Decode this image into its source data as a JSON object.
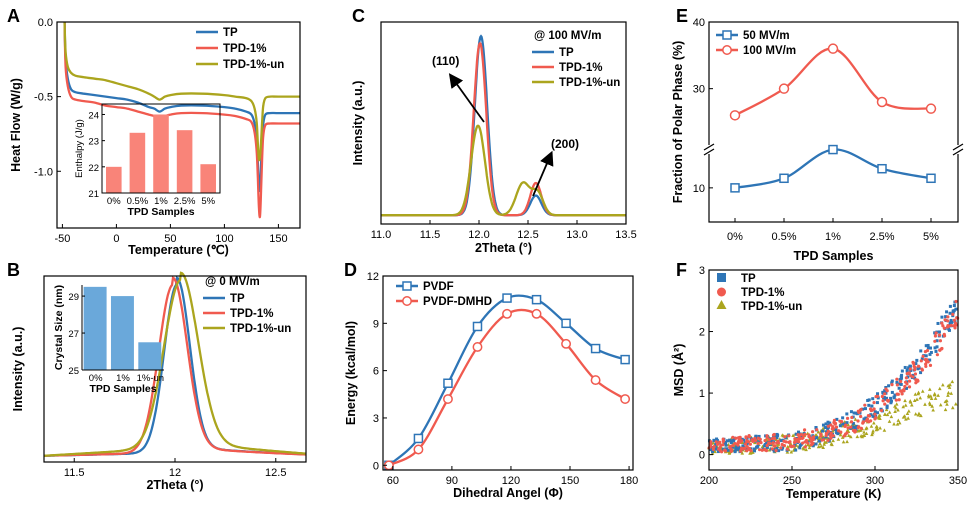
{
  "colors": {
    "TP": "#2E75B6",
    "TPD-1%": "#F05A4F",
    "TPD-1%-un": "#ABA51E",
    "bar_A": "#F98479",
    "bar_B": "#6AA8DA"
  },
  "chart_data": [
    {
      "id": "A",
      "type": "line",
      "panel_label": "A",
      "xlabel": "Temperature (℃)",
      "ylabel": "Heat Flow (W/g)",
      "xlim": [
        -55,
        170
      ],
      "ylim": [
        -1.38,
        0.0
      ],
      "xticks": [
        -50,
        0,
        50,
        100,
        150
      ],
      "yticks": [
        0.0,
        -0.5,
        -1.0
      ],
      "ytick_labels": [
        "0.0",
        "-0.5",
        "-1.0"
      ],
      "legend": "top-right",
      "series": [
        {
          "name": "TP",
          "x": [
            -48,
            -47,
            -45,
            -42,
            -38,
            -30,
            -20,
            -10,
            0,
            10,
            20,
            30,
            35,
            40,
            45,
            50,
            60,
            80,
            100,
            110,
            120,
            125,
            128,
            130,
            131,
            132,
            133,
            134,
            135,
            136,
            138,
            142,
            150,
            170
          ],
          "y": [
            0.0,
            -0.25,
            -0.38,
            -0.45,
            -0.47,
            -0.48,
            -0.49,
            -0.5,
            -0.51,
            -0.52,
            -0.54,
            -0.57,
            -0.58,
            -0.6,
            -0.58,
            -0.57,
            -0.56,
            -0.56,
            -0.57,
            -0.58,
            -0.6,
            -0.62,
            -0.68,
            -0.8,
            -0.95,
            -1.12,
            -1.1,
            -0.95,
            -0.78,
            -0.68,
            -0.62,
            -0.61,
            -0.61,
            -0.61
          ]
        },
        {
          "name": "TPD-1%",
          "x": [
            -48,
            -47,
            -45,
            -42,
            -38,
            -30,
            -20,
            -10,
            0,
            10,
            20,
            30,
            35,
            40,
            45,
            50,
            60,
            80,
            100,
            110,
            120,
            125,
            128,
            130,
            131,
            132,
            133,
            134,
            135,
            136,
            138,
            142,
            150,
            170
          ],
          "y": [
            0.0,
            -0.3,
            -0.43,
            -0.5,
            -0.52,
            -0.53,
            -0.54,
            -0.56,
            -0.57,
            -0.58,
            -0.6,
            -0.62,
            -0.63,
            -0.64,
            -0.63,
            -0.62,
            -0.61,
            -0.61,
            -0.62,
            -0.63,
            -0.65,
            -0.67,
            -0.74,
            -0.88,
            -1.05,
            -1.25,
            -1.3,
            -1.12,
            -0.9,
            -0.76,
            -0.69,
            -0.68,
            -0.68,
            -0.68
          ]
        },
        {
          "name": "TPD-1%-un",
          "x": [
            -48,
            -47,
            -45,
            -42,
            -38,
            -30,
            -20,
            -10,
            0,
            10,
            20,
            30,
            35,
            40,
            45,
            50,
            60,
            80,
            100,
            110,
            120,
            125,
            128,
            130,
            131,
            132,
            133,
            134,
            135,
            136,
            138,
            142,
            150,
            170
          ],
          "y": [
            0.0,
            -0.2,
            -0.3,
            -0.34,
            -0.36,
            -0.37,
            -0.38,
            -0.39,
            -0.41,
            -0.43,
            -0.45,
            -0.48,
            -0.5,
            -0.52,
            -0.5,
            -0.49,
            -0.48,
            -0.48,
            -0.49,
            -0.5,
            -0.51,
            -0.53,
            -0.58,
            -0.68,
            -0.82,
            -0.92,
            -0.9,
            -0.8,
            -0.66,
            -0.56,
            -0.51,
            -0.5,
            -0.5,
            -0.5
          ]
        }
      ],
      "inset": {
        "type": "bar",
        "xlabel": "TPD Samples",
        "ylabel": "Enthalpy (J/g)",
        "categories": [
          "0%",
          "0.5%",
          "1%",
          "2.5%",
          "5%"
        ],
        "values": [
          22.0,
          23.3,
          24.0,
          23.4,
          22.1
        ],
        "ylim": [
          21,
          24.4
        ],
        "yticks": [
          21,
          22,
          23,
          24
        ]
      }
    },
    {
      "id": "B",
      "type": "line",
      "panel_label": "B",
      "xlabel": "2Theta (°)",
      "ylabel": "Intensity (a.u.)",
      "xlim": [
        11.35,
        12.65
      ],
      "xticks": [
        11.5,
        12.0,
        12.5
      ],
      "legend": "top-right",
      "legend_title": "@ 0 MV/m",
      "series": [
        {
          "name": "TP",
          "center": 12.01,
          "width": 0.09,
          "baseline": 0.02
        },
        {
          "name": "TPD-1%",
          "center": 11.99,
          "width": 0.1,
          "baseline": 0.02
        },
        {
          "name": "TPD-1%-un",
          "center": 12.03,
          "width": 0.12,
          "baseline": 0.05
        }
      ],
      "inset": {
        "type": "bar",
        "xlabel": "TPD Samples",
        "ylabel": "Crystal Size (nm)",
        "categories": [
          "0%",
          "1%",
          "1%-un"
        ],
        "values": [
          29.5,
          29.0,
          26.5
        ],
        "ylim": [
          25,
          29.6
        ],
        "yticks": [
          25,
          27,
          29
        ]
      }
    },
    {
      "id": "C",
      "type": "line",
      "panel_label": "C",
      "xlabel": "2Theta (°)",
      "ylabel": "Intensity (a.u.)",
      "xlim": [
        11.0,
        13.5
      ],
      "xticks": [
        11.0,
        11.5,
        12.0,
        12.5,
        13.0,
        13.5
      ],
      "xtick_labels": [
        "11.0",
        "11.5",
        "12.0",
        "12.5",
        "13.0",
        "13.5"
      ],
      "legend": "top-right",
      "legend_title": "@ 100 MV/m",
      "annotations": [
        "(110)",
        "(200)"
      ],
      "series": [
        {
          "name": "TP",
          "peaks": [
            [
              12.02,
              0.09,
              1.0
            ],
            [
              12.58,
              0.08,
              0.11
            ]
          ]
        },
        {
          "name": "TPD-1%",
          "peaks": [
            [
              12.01,
              0.09,
              0.96
            ],
            [
              12.58,
              0.08,
              0.18
            ]
          ]
        },
        {
          "name": "TPD-1%-un",
          "peaks": [
            [
              11.99,
              0.1,
              0.5
            ],
            [
              12.45,
              0.1,
              0.18
            ],
            [
              12.6,
              0.08,
              0.12
            ]
          ]
        }
      ]
    },
    {
      "id": "D",
      "type": "line",
      "panel_label": "D",
      "xlabel": "Dihedral Angel (Φ)",
      "ylabel": "Energy (kcal/mol)",
      "xlim": [
        55,
        182
      ],
      "ylim": [
        -0.3,
        12
      ],
      "xticks": [
        60,
        90,
        120,
        150,
        180
      ],
      "yticks": [
        0,
        3,
        6,
        9,
        12
      ],
      "legend": "top-left",
      "series": [
        {
          "name": "PVDF",
          "x": [
            58,
            73,
            88,
            103,
            118,
            133,
            148,
            163,
            178
          ],
          "y": [
            0,
            1.7,
            5.2,
            8.8,
            10.6,
            10.5,
            9.0,
            7.4,
            6.7
          ]
        },
        {
          "name": "PVDF-DMHD",
          "x": [
            58,
            73,
            88,
            103,
            118,
            133,
            148,
            163,
            178
          ],
          "y": [
            0,
            1.0,
            4.2,
            7.5,
            9.6,
            9.6,
            7.7,
            5.4,
            4.2
          ]
        }
      ]
    },
    {
      "id": "E",
      "type": "line",
      "panel_label": "E",
      "xlabel": "TPD Samples",
      "ylabel": "Fraction of Polar Phase (%)",
      "categories": [
        "0%",
        "0.5%",
        "1%",
        "2.5%",
        "5%"
      ],
      "axis_break": true,
      "yticks": [
        10,
        30,
        40
      ],
      "legend": "top-left",
      "series": [
        {
          "name": "50 MV/m",
          "values": [
            10.0,
            11.0,
            14.0,
            12.0,
            11.0
          ]
        },
        {
          "name": "100 MV/m",
          "values": [
            26.0,
            30.0,
            36.0,
            28.0,
            27.0
          ]
        }
      ]
    },
    {
      "id": "F",
      "type": "scatter",
      "panel_label": "F",
      "xlabel": "Temperature (K)",
      "ylabel": "MSD (Å²)",
      "xlim": [
        200,
        350
      ],
      "ylim": [
        -0.25,
        3.0
      ],
      "xticks": [
        200,
        250,
        300,
        350
      ],
      "yticks": [
        0,
        1,
        2,
        3
      ],
      "legend": "top-left",
      "series": [
        {
          "name": "TP",
          "trend_x": [
            200,
            250,
            270,
            290,
            310,
            330,
            350
          ],
          "trend_y": [
            0.15,
            0.2,
            0.35,
            0.6,
            1.0,
            1.6,
            2.45
          ]
        },
        {
          "name": "TPD-1%",
          "trend_x": [
            200,
            250,
            270,
            290,
            310,
            330,
            350
          ],
          "trend_y": [
            0.15,
            0.22,
            0.35,
            0.55,
            0.95,
            1.5,
            2.35
          ]
        },
        {
          "name": "TPD-1%-un",
          "trend_x": [
            200,
            250,
            270,
            290,
            310,
            330,
            350
          ],
          "trend_y": [
            0.12,
            0.18,
            0.28,
            0.42,
            0.62,
            0.85,
            1.0
          ]
        }
      ]
    }
  ]
}
